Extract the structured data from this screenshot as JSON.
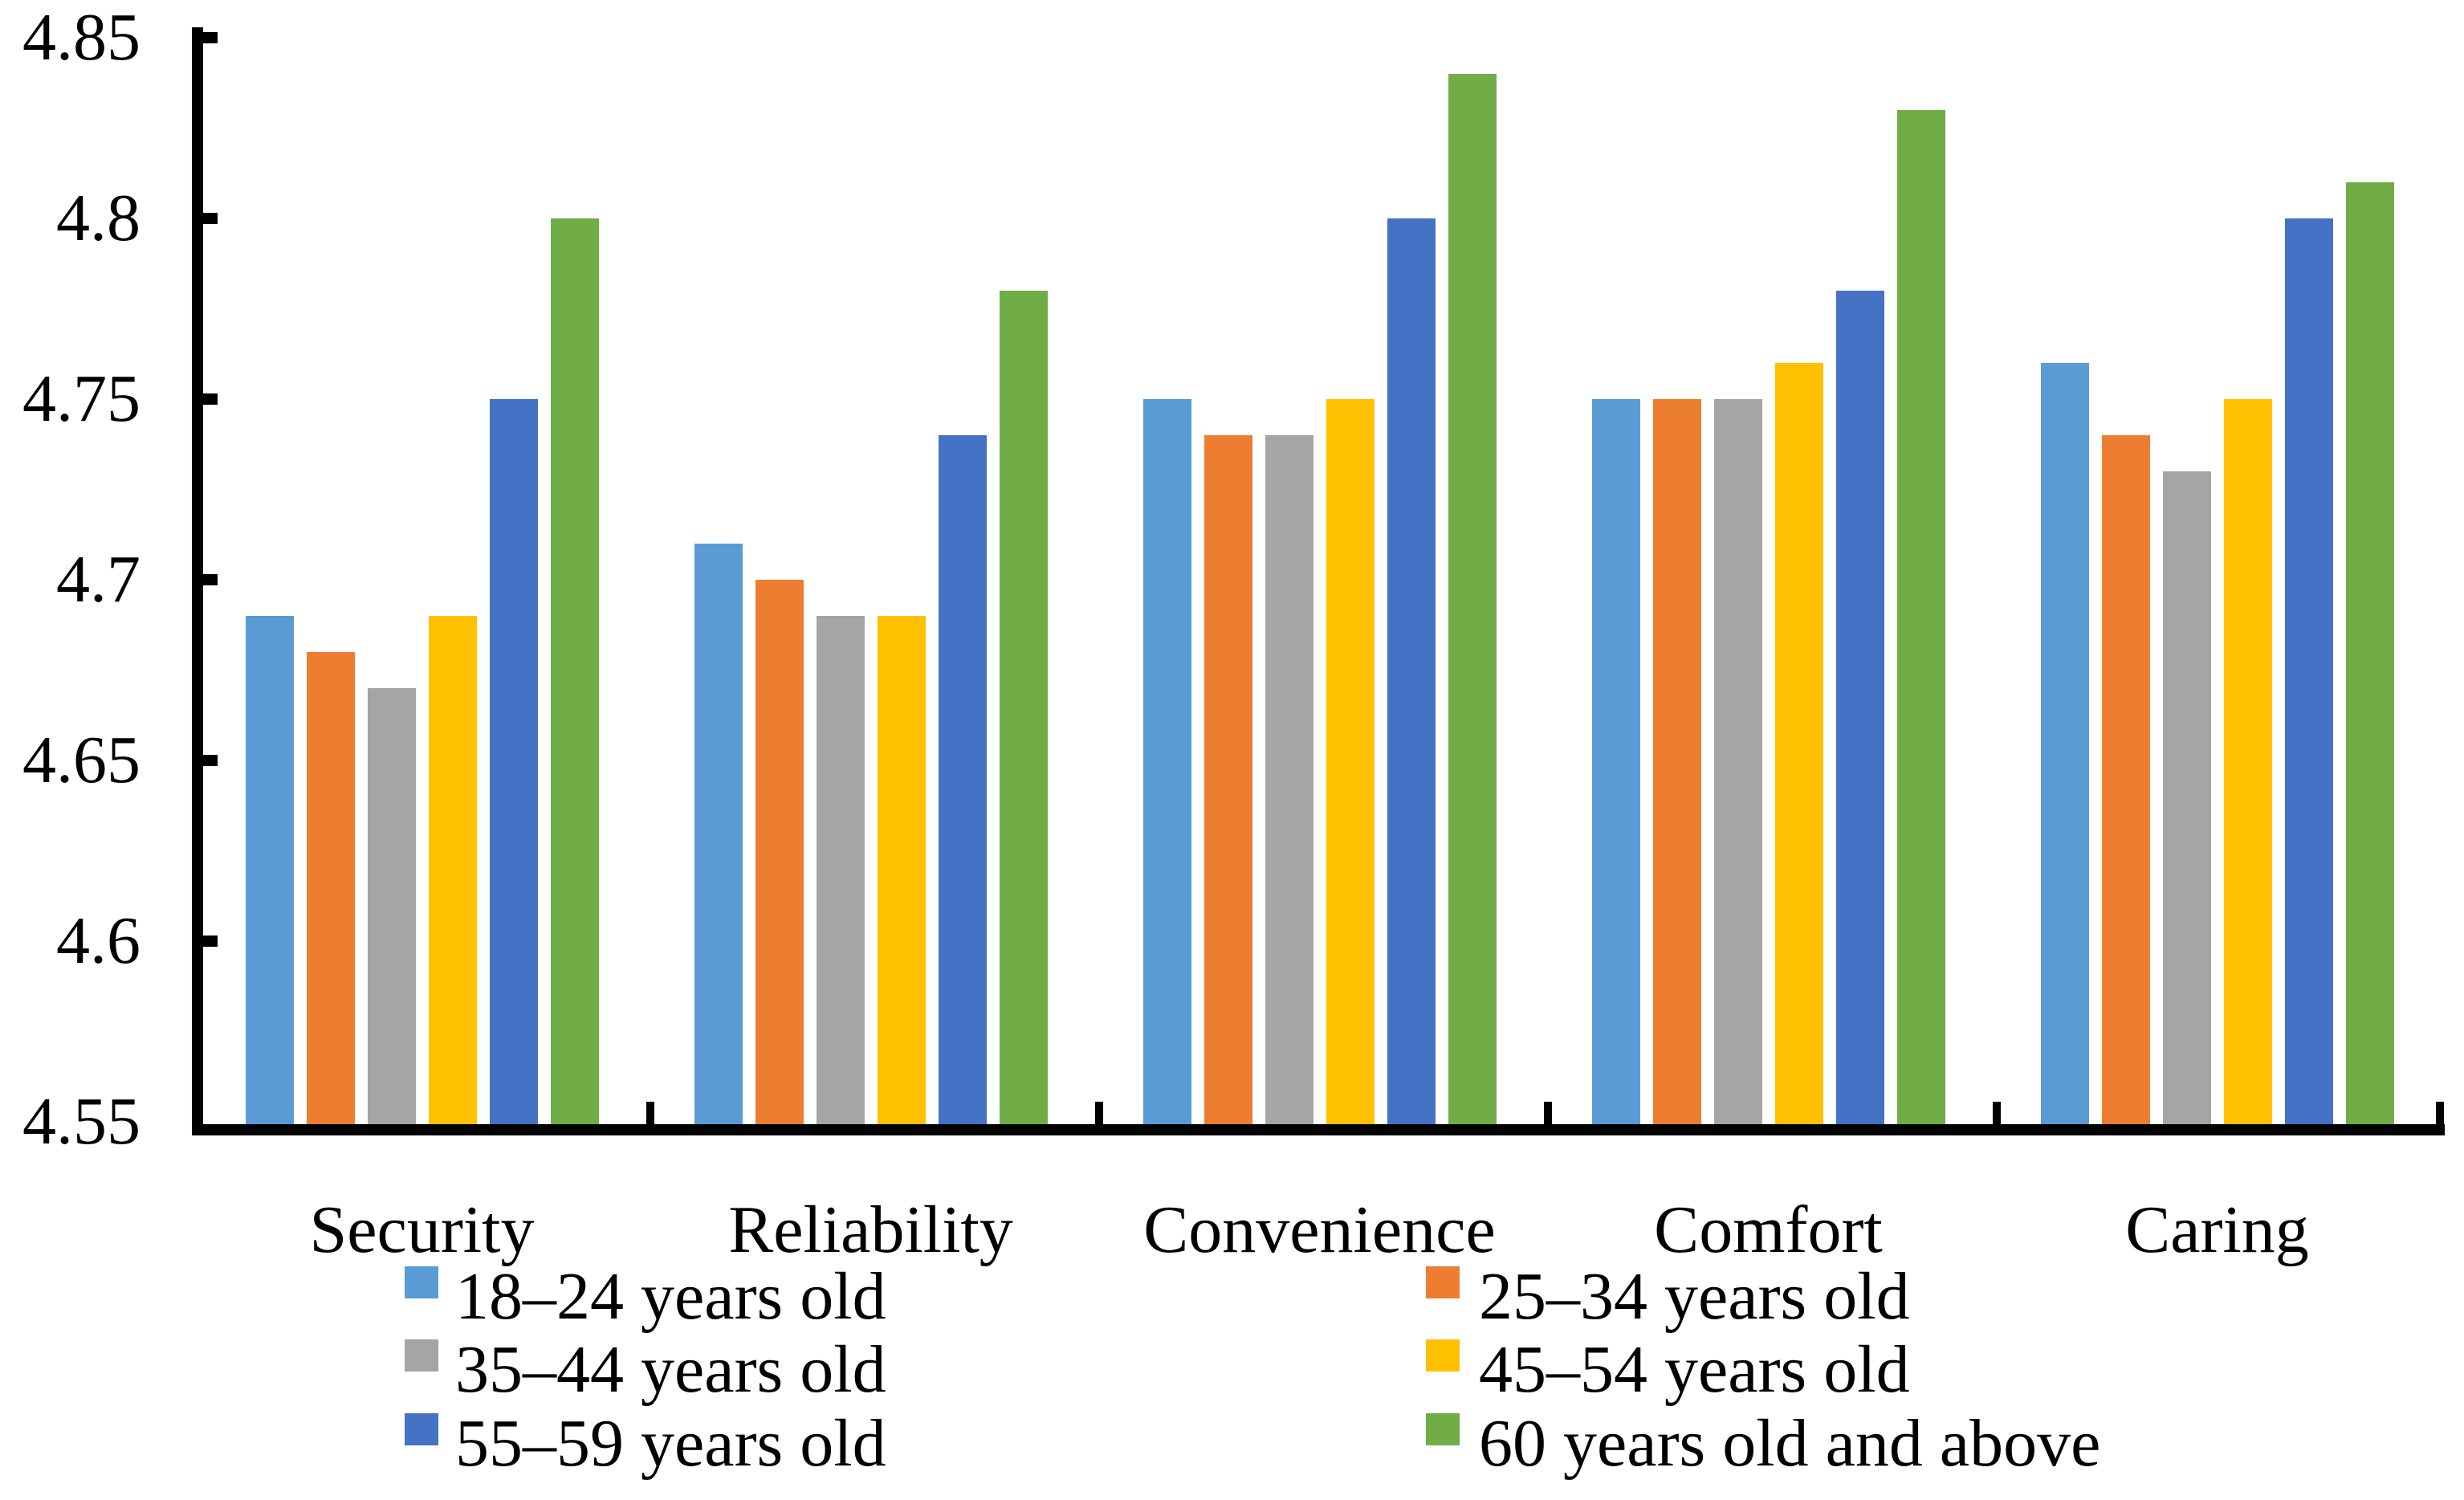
{
  "chart_data": {
    "type": "bar",
    "title": "",
    "xlabel": "",
    "ylabel": "",
    "categories": [
      "Security",
      "Reliability",
      "Convenience",
      "Comfort",
      "Caring"
    ],
    "series": [
      {
        "name": "18–24 years old",
        "color": "#5B9BD5",
        "values": [
          4.69,
          4.71,
          4.75,
          4.75,
          4.76
        ]
      },
      {
        "name": "25–34 years old",
        "color": "#ED7D31",
        "values": [
          4.68,
          4.7,
          4.74,
          4.75,
          4.74
        ]
      },
      {
        "name": "35–44 years old",
        "color": "#A5A5A5",
        "values": [
          4.67,
          4.69,
          4.74,
          4.75,
          4.73
        ]
      },
      {
        "name": "45–54 years old",
        "color": "#FFC000",
        "values": [
          4.69,
          4.69,
          4.75,
          4.76,
          4.75
        ]
      },
      {
        "name": "55–59 years old",
        "color": "#4472C4",
        "values": [
          4.75,
          4.74,
          4.8,
          4.78,
          4.8
        ]
      },
      {
        "name": "60 years old and above",
        "color": "#70AD47",
        "values": [
          4.8,
          4.78,
          4.84,
          4.83,
          4.81
        ]
      }
    ],
    "ylim": [
      4.55,
      4.85
    ],
    "yticks": [
      4.85,
      4.8,
      4.75,
      4.7,
      4.65,
      4.6,
      4.55
    ],
    "ytick_labels": [
      "4.85",
      "4.8",
      "4.75",
      "4.7",
      "4.65",
      "4.6",
      "4.55"
    ],
    "grid": false,
    "bar_outline": "none",
    "axis_color": "#000000",
    "tick_style": "inside",
    "legend_position": "bottom-two-columns"
  },
  "legend": {
    "left_column_series_indexes": [
      0,
      2,
      4
    ],
    "right_column_series_indexes": [
      1,
      3,
      5
    ]
  }
}
